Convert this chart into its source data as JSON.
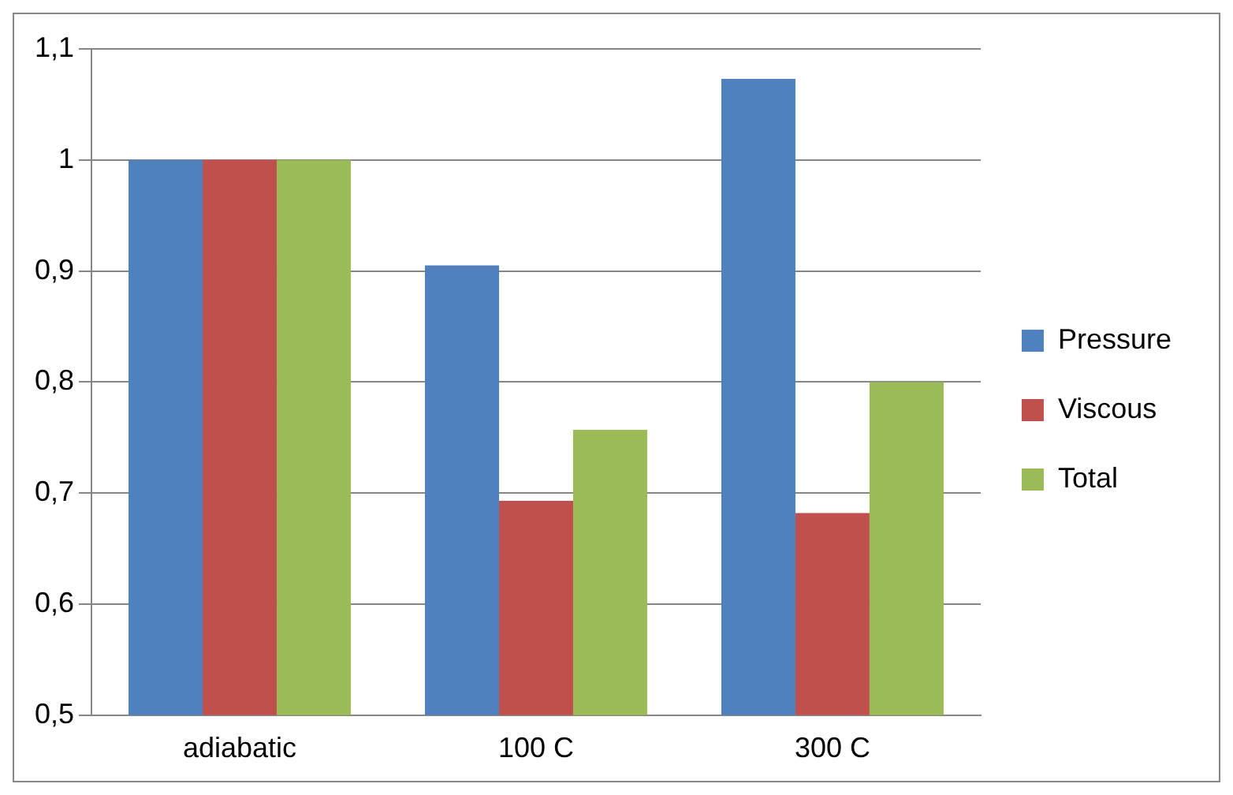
{
  "chart_data": {
    "type": "bar",
    "categories": [
      "adiabatic",
      "100 C",
      "300 C"
    ],
    "series": [
      {
        "name": "Pressure",
        "color": "#4f81bd",
        "values": [
          1.0,
          0.905,
          1.073
        ]
      },
      {
        "name": "Viscous",
        "color": "#c0504d",
        "values": [
          1.0,
          0.693,
          0.682
        ]
      },
      {
        "name": "Total",
        "color": "#9bbb59",
        "values": [
          1.0,
          0.757,
          0.8
        ]
      }
    ],
    "ylim": [
      0.5,
      1.1
    ],
    "yticks": [
      {
        "value": 0.5,
        "label": "0,5"
      },
      {
        "value": 0.6,
        "label": "0,6"
      },
      {
        "value": 0.7,
        "label": "0,7"
      },
      {
        "value": 0.8,
        "label": "0,8"
      },
      {
        "value": 0.9,
        "label": "0,9"
      },
      1,
      {
        "value": 1.1,
        "label": "1,1"
      }
    ],
    "grid": "y",
    "legend": "right"
  }
}
